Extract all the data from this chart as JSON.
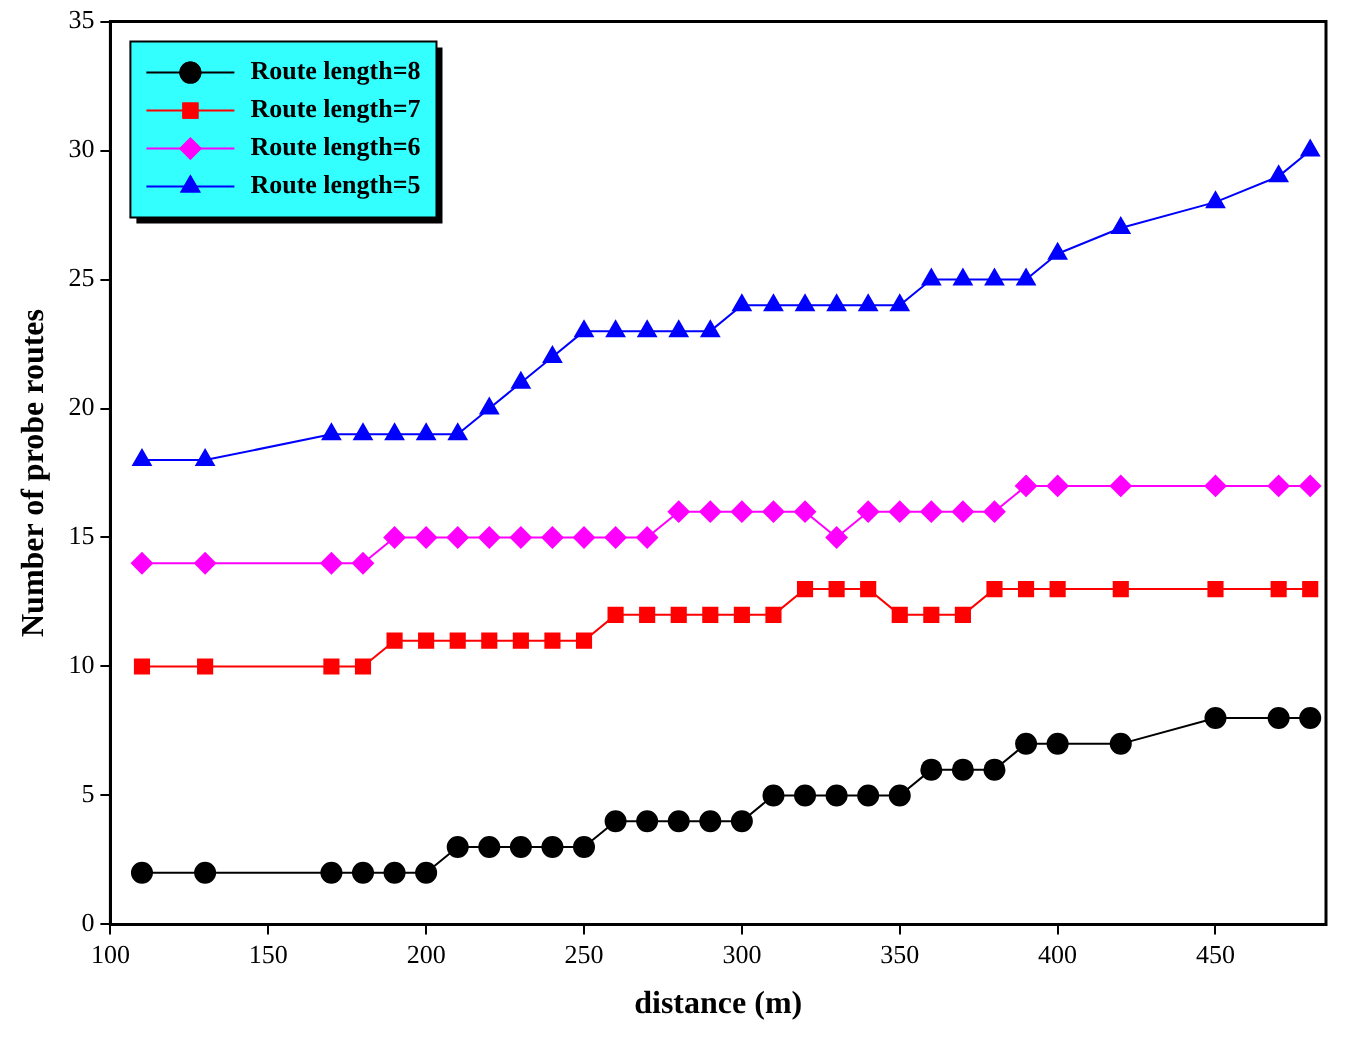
{
  "chart_data": {
    "type": "line",
    "xlabel": "distance (m)",
    "ylabel": "Number of probe routes",
    "x": [
      110,
      130,
      170,
      180,
      190,
      200,
      210,
      220,
      230,
      240,
      250,
      260,
      270,
      280,
      290,
      300,
      310,
      320,
      330,
      340,
      350,
      360,
      370,
      380,
      390,
      400,
      420,
      450,
      470,
      480
    ],
    "series": [
      {
        "name": "Route length=8",
        "color": "#000000",
        "marker": "circle",
        "values": [
          2,
          2,
          2,
          2,
          2,
          2,
          3,
          3,
          3,
          3,
          3,
          4,
          4,
          4,
          4,
          4,
          5,
          5,
          5,
          5,
          5,
          6,
          6,
          6,
          7,
          7,
          7,
          8,
          8,
          8
        ]
      },
      {
        "name": "Route length=7",
        "color": "#ff0000",
        "marker": "square",
        "values": [
          10,
          10,
          10,
          10,
          11,
          11,
          11,
          11,
          11,
          11,
          11,
          12,
          12,
          12,
          12,
          12,
          12,
          13,
          13,
          13,
          12,
          12,
          12,
          13,
          13,
          13,
          13,
          13,
          13,
          13
        ]
      },
      {
        "name": "Route length=6",
        "color": "#ff00ff",
        "marker": "diamond",
        "values": [
          14,
          14,
          14,
          14,
          15,
          15,
          15,
          15,
          15,
          15,
          15,
          15,
          15,
          16,
          16,
          16,
          16,
          16,
          15,
          16,
          16,
          16,
          16,
          16,
          17,
          17,
          17,
          17,
          17,
          17
        ]
      },
      {
        "name": "Route length=5",
        "color": "#0000ff",
        "marker": "triangle",
        "values": [
          18,
          18,
          19,
          19,
          19,
          19,
          19,
          20,
          21,
          22,
          23,
          23,
          23,
          23,
          23,
          24,
          24,
          24,
          24,
          24,
          24,
          25,
          25,
          25,
          25,
          26,
          27,
          28,
          29,
          30
        ]
      }
    ],
    "xlim": [
      100,
      485
    ],
    "xticks": [
      100,
      150,
      200,
      250,
      300,
      350,
      400,
      450
    ],
    "ylim": [
      0,
      35
    ],
    "yticks": [
      0,
      5,
      10,
      15,
      20,
      25,
      30,
      35
    ],
    "grid": false,
    "legend": "top left",
    "line_style": "solid"
  }
}
